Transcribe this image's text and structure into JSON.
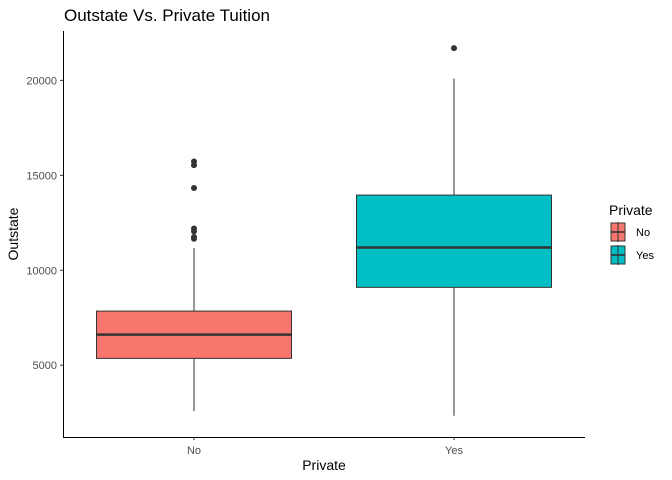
{
  "chart_data": {
    "type": "boxplot",
    "title": "Outstate Vs. Private Tuition",
    "xlabel": "Private",
    "ylabel": "Outstate",
    "categories": [
      "No",
      "Yes"
    ],
    "ylim": [
      1220,
      22600
    ],
    "yticks": [
      5000,
      10000,
      15000,
      20000
    ],
    "ytick_labels": [
      "5000",
      "10000",
      "15000",
      "20000"
    ],
    "boxes": [
      {
        "category": "No",
        "color": "#F8766D",
        "whisker_low": 2580,
        "q1": 5360,
        "median": 6610,
        "q3": 7850,
        "whisker_high": 11170,
        "outliers": [
          11660,
          11750,
          12050,
          12200,
          14330,
          15540,
          15730
        ]
      },
      {
        "category": "Yes",
        "color": "#00BFC4",
        "whisker_low": 2340,
        "q1": 9100,
        "median": 11200,
        "q3": 13960,
        "whisker_high": 20100,
        "outliers": [
          21700
        ]
      }
    ],
    "legend": {
      "title": "Private",
      "position": "right",
      "entries": [
        "No",
        "Yes"
      ]
    },
    "grid": false
  }
}
